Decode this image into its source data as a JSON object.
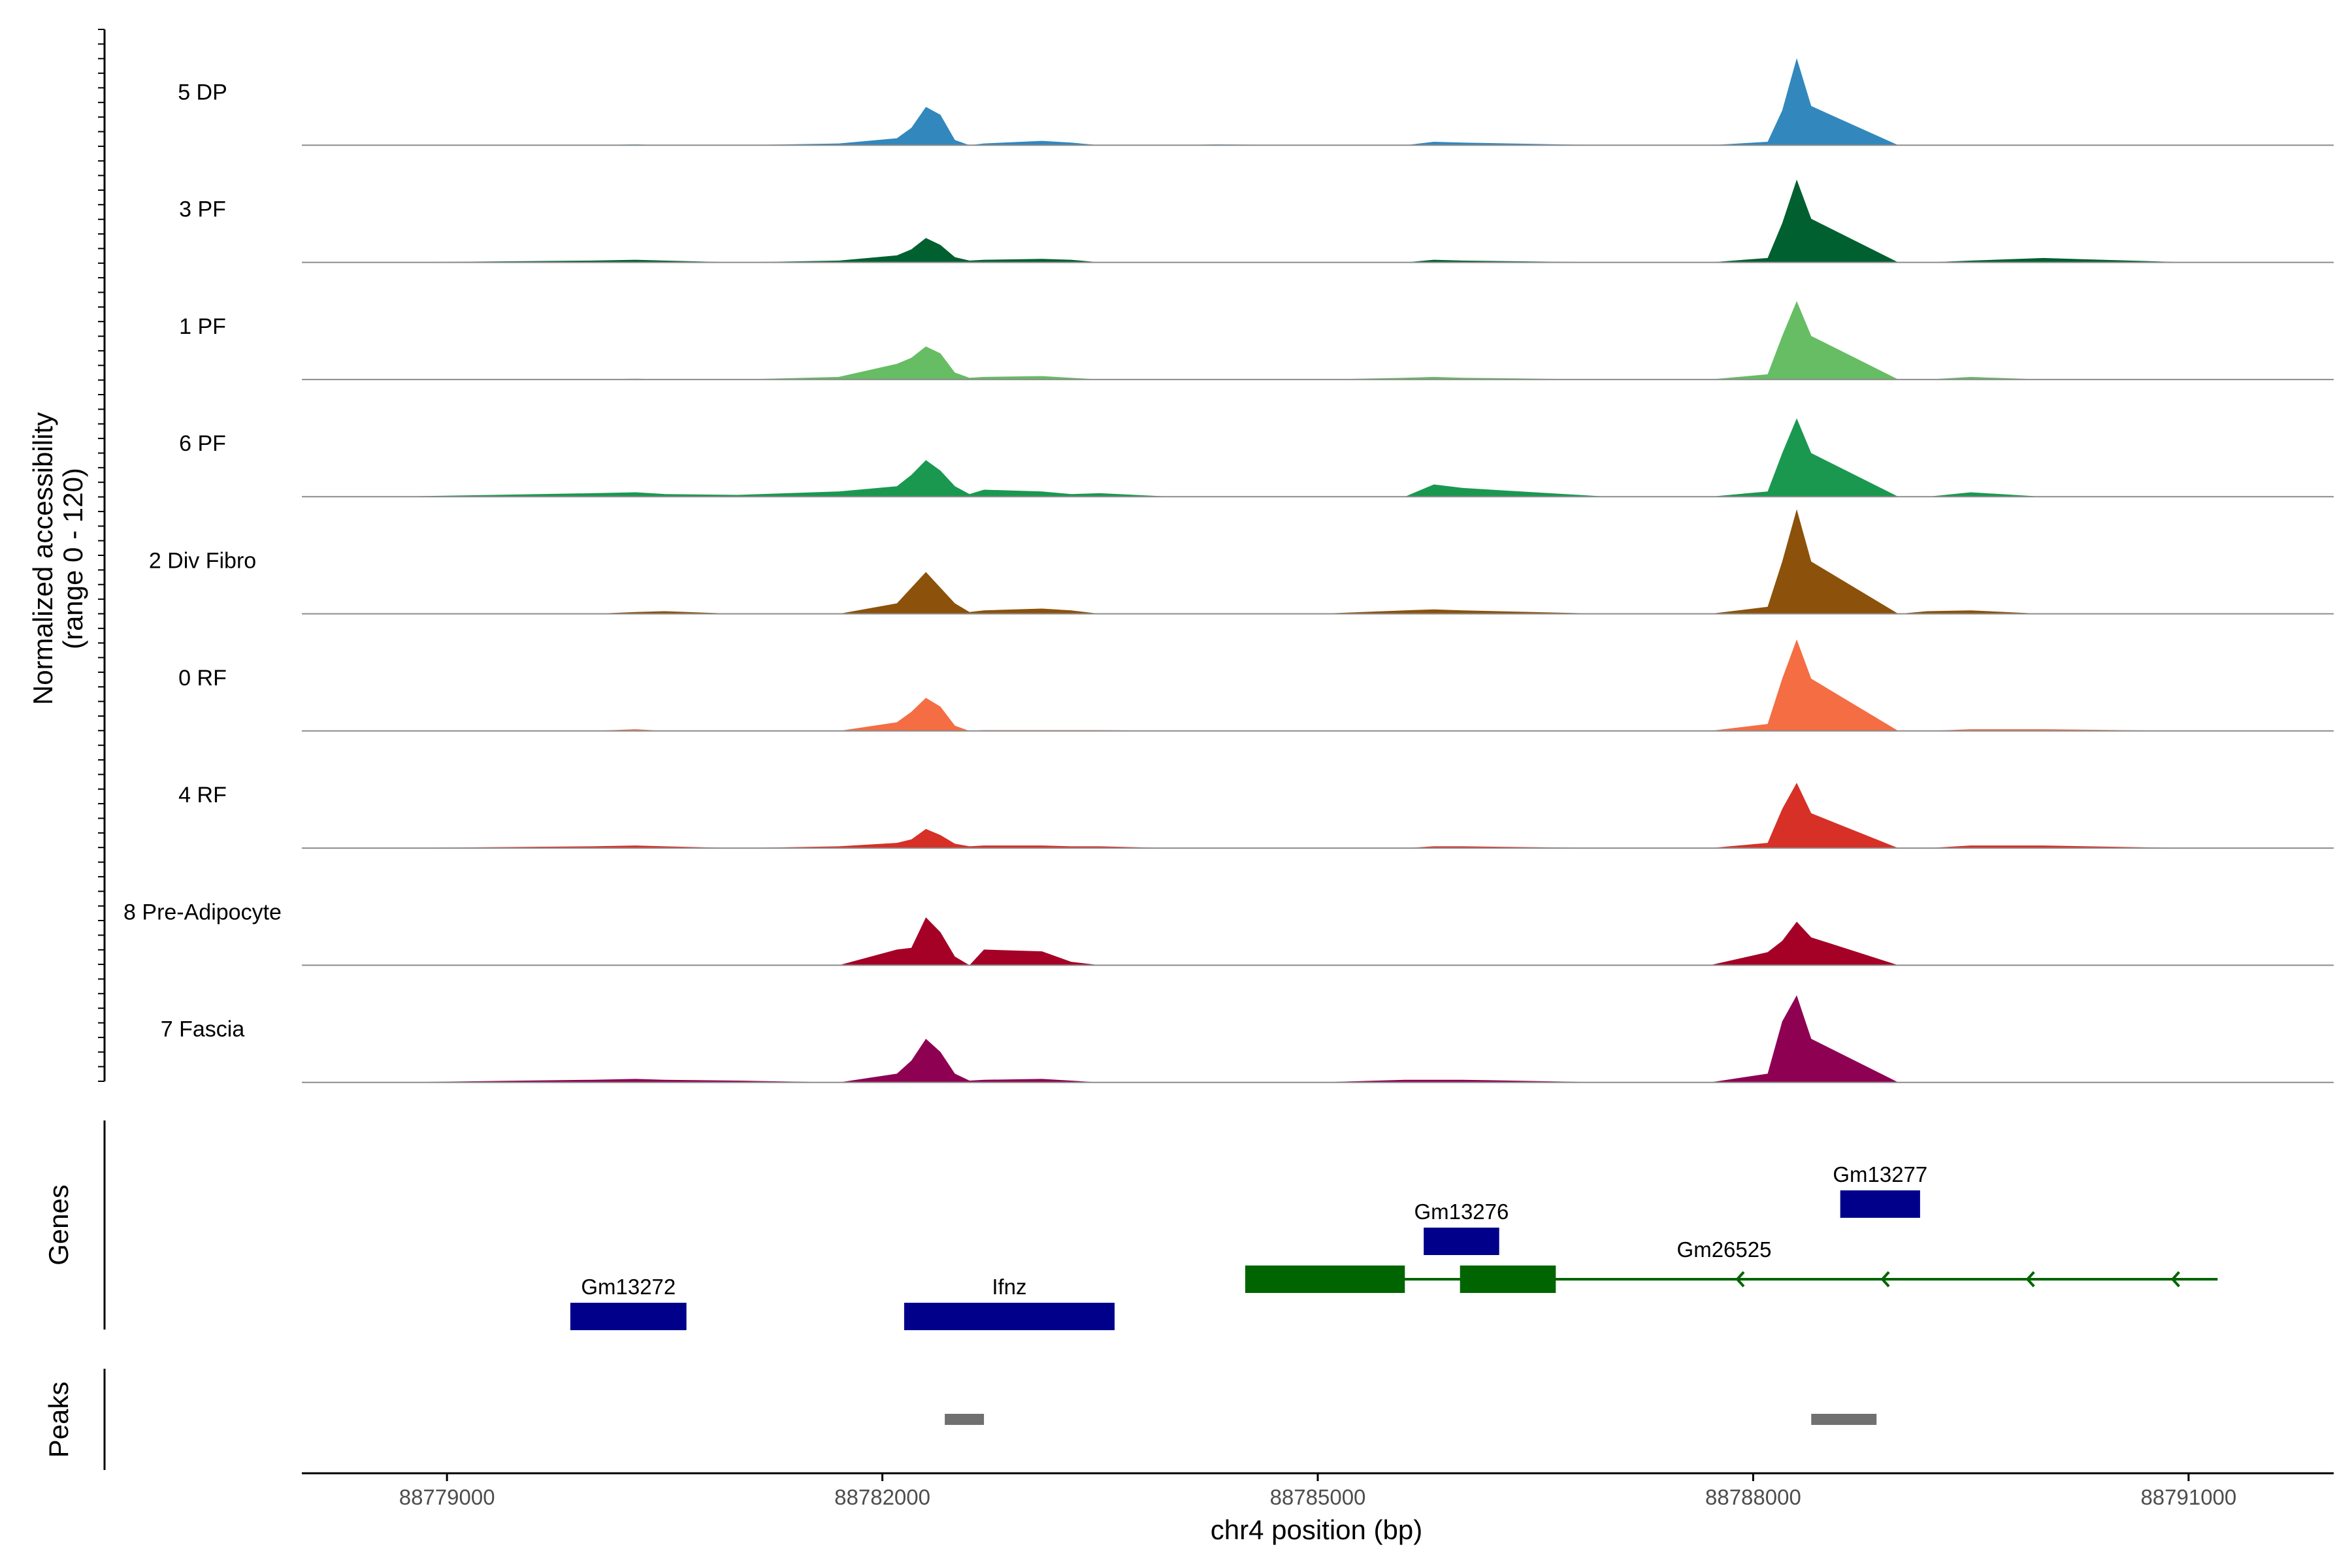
{
  "chart_data": {
    "type": "area",
    "title": "",
    "ylabel": "Normalized accessibility",
    "ylabel_sub": "(range 0 - 120)",
    "ylim": [
      0,
      120
    ],
    "xlabel": "chr4 position (bp)",
    "xlim": [
      88778000,
      88792000
    ],
    "xticks": [
      88779000,
      88782000,
      88785000,
      88788000,
      88791000
    ],
    "x_tick_labels": [
      "88779000",
      "88782000",
      "88785000",
      "88788000",
      "88791000"
    ],
    "coverage_x": [
      88778600,
      88780000,
      88780300,
      88780500,
      88781000,
      88781700,
      88782100,
      88782200,
      88782300,
      88782400,
      88782500,
      88782600,
      88782700,
      88783100,
      88783300,
      88783500,
      88784000,
      88784300,
      88785000,
      88785600,
      88785800,
      88786000,
      88787000,
      88787700,
      88788100,
      88788200,
      88788300,
      88788400,
      88789000,
      88789200,
      88789500,
      88790000,
      88791000,
      88791900
    ],
    "series": [
      {
        "name": "5 DP",
        "color": "#3288bd",
        "values": [
          0,
          0,
          1,
          0,
          0,
          2,
          8,
          20,
          44,
          35,
          6,
          0,
          2,
          5,
          3,
          0,
          0,
          1,
          0,
          0,
          4,
          3,
          0,
          0,
          4,
          40,
          100,
          45,
          0,
          0,
          0,
          0,
          0,
          0
        ]
      },
      {
        "name": "3 PF",
        "color": "#00602f",
        "values": [
          0,
          2,
          3,
          2,
          0,
          2,
          8,
          15,
          28,
          20,
          6,
          2,
          3,
          4,
          3,
          0,
          0,
          0,
          0,
          0,
          3,
          2,
          0,
          0,
          5,
          45,
          95,
          50,
          0,
          0,
          2,
          5,
          0,
          0
        ]
      },
      {
        "name": "1 PF",
        "color": "#66bd63",
        "values": [
          0,
          0,
          1,
          0,
          0,
          3,
          18,
          25,
          38,
          30,
          8,
          2,
          3,
          4,
          2,
          0,
          0,
          0,
          0,
          2,
          3,
          2,
          0,
          0,
          6,
          50,
          90,
          50,
          0,
          0,
          3,
          0,
          0,
          0
        ]
      },
      {
        "name": "6 PF",
        "color": "#1a9850",
        "values": [
          0,
          4,
          5,
          3,
          2,
          6,
          12,
          25,
          42,
          30,
          12,
          3,
          8,
          6,
          3,
          4,
          0,
          0,
          0,
          0,
          14,
          10,
          0,
          0,
          6,
          50,
          90,
          50,
          0,
          0,
          5,
          0,
          0,
          0
        ]
      },
      {
        "name": "2 Div Fibro",
        "color": "#8c510a",
        "values": [
          0,
          0,
          2,
          3,
          0,
          0,
          12,
          30,
          48,
          30,
          12,
          2,
          4,
          6,
          4,
          0,
          0,
          0,
          0,
          4,
          5,
          4,
          0,
          0,
          8,
          60,
          120,
          60,
          0,
          3,
          4,
          0,
          0,
          0
        ]
      },
      {
        "name": "0 RF",
        "color": "#f46d43",
        "values": [
          0,
          0,
          2,
          0,
          0,
          0,
          10,
          22,
          38,
          28,
          6,
          0,
          1,
          1,
          1,
          1,
          0,
          0,
          0,
          0,
          0,
          0,
          0,
          0,
          8,
          60,
          105,
          60,
          0,
          0,
          2,
          2,
          0,
          0
        ]
      },
      {
        "name": "4 RF",
        "color": "#d73027",
        "values": [
          0,
          2,
          3,
          2,
          0,
          2,
          6,
          10,
          22,
          15,
          5,
          2,
          3,
          3,
          2,
          2,
          0,
          0,
          0,
          0,
          2,
          2,
          0,
          0,
          6,
          45,
          75,
          40,
          0,
          0,
          3,
          3,
          0,
          0
        ]
      },
      {
        "name": "8 Pre-Adipocyte",
        "color": "#a50026",
        "values": [
          0,
          0,
          0,
          0,
          0,
          0,
          18,
          20,
          55,
          38,
          10,
          0,
          18,
          16,
          4,
          0,
          0,
          0,
          0,
          0,
          0,
          0,
          0,
          0,
          15,
          28,
          50,
          32,
          0,
          0,
          0,
          0,
          0,
          0
        ]
      },
      {
        "name": "7 Fascia",
        "color": "#8e0152",
        "values": [
          0,
          3,
          4,
          3,
          2,
          0,
          10,
          25,
          50,
          35,
          10,
          2,
          3,
          4,
          2,
          0,
          0,
          0,
          0,
          3,
          3,
          3,
          0,
          0,
          10,
          70,
          100,
          50,
          0,
          0,
          0,
          0,
          0,
          0
        ]
      }
    ],
    "genes_track_label": "Genes",
    "genes": [
      {
        "name": "Gm13272",
        "start": 88779850,
        "end": 88780650,
        "color": "#00008b",
        "row": 1
      },
      {
        "name": "Ifnz",
        "start": 88782150,
        "end": 88783600,
        "color": "#00008b",
        "row": 1
      },
      {
        "name": "Gm13276",
        "start": 88785730,
        "end": 88786250,
        "color": "#00008b",
        "row": 3
      },
      {
        "name": "Gm13277",
        "start": 88788600,
        "end": 88789150,
        "color": "#00008b",
        "row": 4
      },
      {
        "name": "Gm26525",
        "start": 88784500,
        "end": 88791200,
        "color": "#006400",
        "row": 2,
        "strand": "-",
        "exons": [
          [
            88784500,
            88785600
          ],
          [
            88785980,
            88786640
          ]
        ]
      }
    ],
    "peaks_track_label": "Peaks",
    "peaks": [
      {
        "start": 88782430,
        "end": 88782700,
        "color": "#707070"
      },
      {
        "start": 88788400,
        "end": 88788850,
        "color": "#707070"
      }
    ]
  }
}
